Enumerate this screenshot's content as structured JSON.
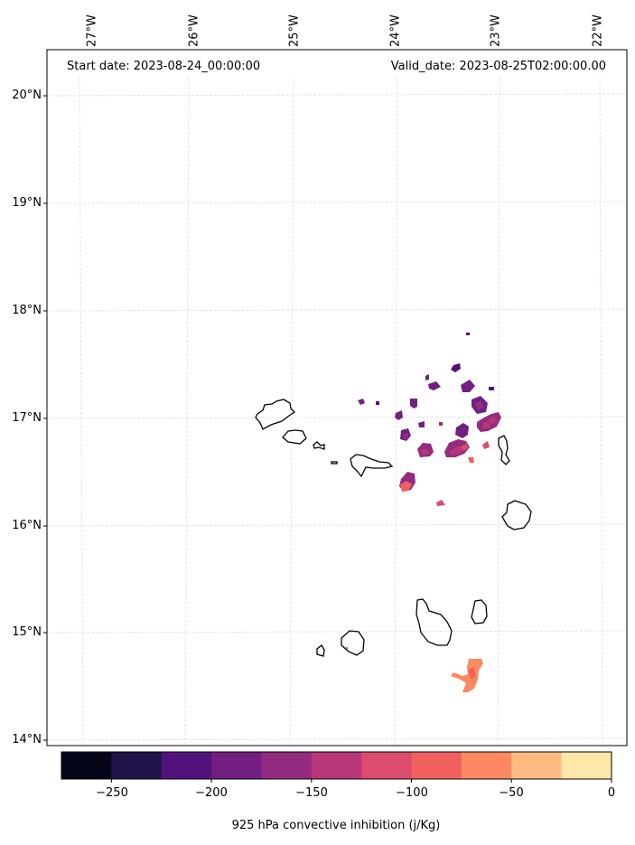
{
  "header": {
    "start_date": "Start date: 2023-08-24_00:00:00",
    "valid_date": "Valid_date: 2023-08-25T02:00:00.00"
  },
  "axes": {
    "longitude_labels": [
      "27°W",
      "26°W",
      "25°W",
      "24°W",
      "23°W",
      "22°W"
    ],
    "latitude_labels": [
      "20°N",
      "19°N",
      "18°N",
      "17°N",
      "16°N",
      "15°N",
      "14°N"
    ],
    "gridlines": true
  },
  "colorbar": {
    "label": "925 hPa convective inhibition (j/Kg)",
    "range": [
      -275,
      0
    ],
    "tick_labels": [
      "−250",
      "−200",
      "−150",
      "−100",
      "−50",
      "0"
    ],
    "colors": [
      "#05051a",
      "#21134b",
      "#51127c",
      "#721f81",
      "#932b80",
      "#b73779",
      "#dc4c6c",
      "#f1605d",
      "#fc8961",
      "#febb81",
      "#fde7a9"
    ]
  },
  "colors": {
    "coastline": "#000000",
    "gridline": "#dddddd"
  }
}
